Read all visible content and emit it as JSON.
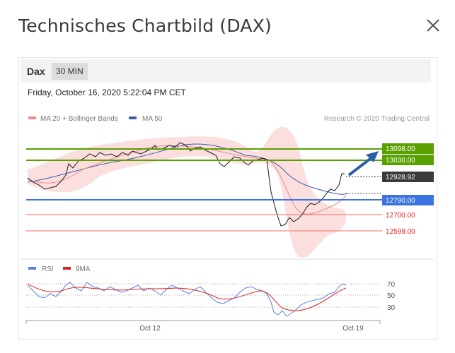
{
  "dialog": {
    "title": "Technisches Chartbild (DAX)"
  },
  "toolbar": {
    "symbol": "Dax",
    "interval": "30 MIN"
  },
  "timestamp": "Friday, October 16, 2020 5:22:04 PM CET",
  "legend": {
    "ma20": "MA 20 + Bollinger Bands",
    "ma50": "MA 50",
    "credit": "Research © 2020 Trading Central",
    "rsi": "RSI",
    "rsi_ma": "9MA"
  },
  "colors": {
    "resistance": "#5aa000",
    "support": "#3b73e0",
    "target_line": "#ef6b6b",
    "last_price": "#3a3a3a",
    "ma20": "#f08a8a",
    "ma50": "#3f5fa8",
    "rsi": "#5b7fe0",
    "rsi_ma": "#e02020"
  },
  "chart_data": {
    "type": "line",
    "price_levels": [
      {
        "label": "13098.00",
        "kind": "resistance"
      },
      {
        "label": "13030.00",
        "kind": "resistance"
      },
      {
        "label": "12928.92",
        "kind": "last"
      },
      {
        "label": "12790.00",
        "kind": "support"
      },
      {
        "label": "12700.00",
        "kind": "target"
      },
      {
        "label": "12599.00",
        "kind": "target"
      }
    ],
    "rsi_levels": [
      "70",
      "50",
      "30"
    ],
    "x_ticks": [
      "Oct 12",
      "Oct 19"
    ]
  }
}
